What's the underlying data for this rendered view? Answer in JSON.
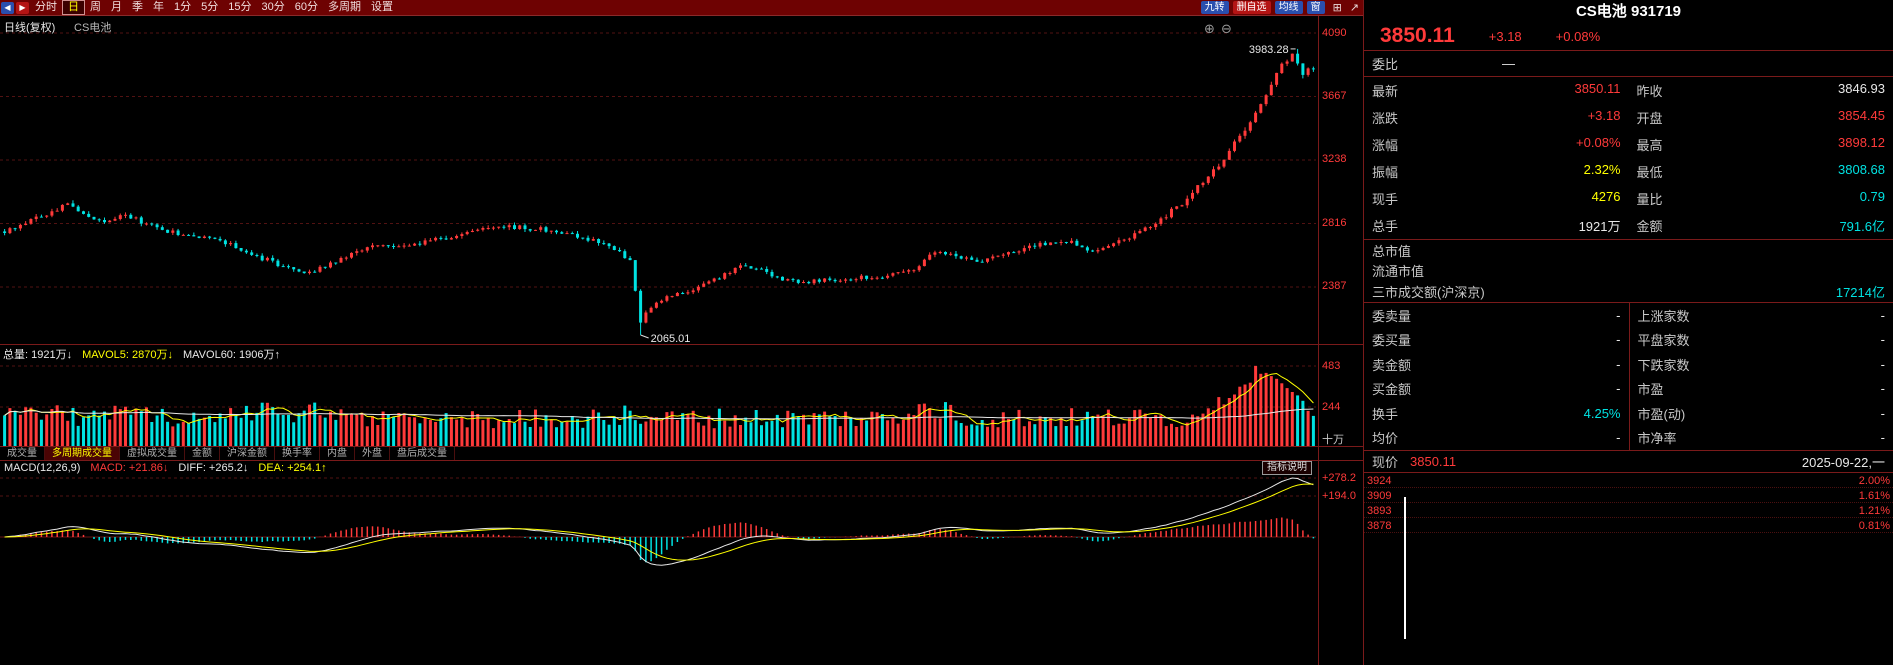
{
  "app": {
    "colors": {
      "red": "#ff3a3a",
      "cyan": "#00e2e2",
      "yellow": "#ffff00",
      "white": "#e8e8e8",
      "panel_border": "#7a1a1a",
      "toolbar_bg": "#6e0202",
      "grid": "#521212",
      "badge_blue": "#2a4fae",
      "badge_red": "#b41414"
    }
  },
  "toolbar": {
    "periods": [
      "分时",
      "日",
      "周",
      "月",
      "季",
      "年",
      "1分",
      "5分",
      "15分",
      "30分",
      "60分",
      "多周期",
      "设置"
    ],
    "active_period": "日",
    "badges": [
      {
        "label": "九转"
      },
      {
        "label": "删自选"
      },
      {
        "label": "均线"
      },
      {
        "label": "窗"
      }
    ]
  },
  "chart": {
    "type_label": "日线(复权)",
    "symbol_label": "CS电池",
    "axis_labels": [
      "4090",
      "3667",
      "3238",
      "2816",
      "2387"
    ],
    "high_annotation": "3983.28",
    "low_annotation": "2065.01"
  },
  "volume_panel": {
    "total": "总量: 1921万↓",
    "mavol5": "MAVOL5: 2870万↓",
    "mavol60": "MAVOL60: 1906万↑",
    "ticks": [
      "483",
      "244"
    ],
    "unit": "十万"
  },
  "tabs": {
    "items": [
      "成交量",
      "多周期成交量",
      "虚拟成交量",
      "金额",
      "沪深金额",
      "换手率",
      "内盘",
      "外盘",
      "盘后成交量"
    ],
    "active": "多周期成交量"
  },
  "macd_panel": {
    "title": "MACD(12,26,9)",
    "macd": "MACD: +21.86↓",
    "diff": "DIFF: +265.2↓",
    "dea": "DEA: +254.1↑",
    "ticks": [
      "+278.2",
      "+194.0"
    ],
    "help": "指标说明"
  },
  "sidebar": {
    "title": "CS电池 931719",
    "price": "3850.11",
    "change": "+3.18",
    "change_pct": "+0.08%",
    "weibi_label": "委比",
    "weibi_value": "—",
    "rows": [
      {
        "l1": "最新",
        "v1": "3850.11",
        "l2": "昨收",
        "v2": "3846.93"
      },
      {
        "l1": "涨跌",
        "v1": "+3.18",
        "l2": "开盘",
        "v2": "3854.45"
      },
      {
        "l1": "涨幅",
        "v1": "+0.08%",
        "l2": "最高",
        "v2": "3898.12"
      },
      {
        "l1": "振幅",
        "v1": "2.32%",
        "l2": "最低",
        "v2": "3808.68"
      },
      {
        "l1": "现手",
        "v1": "4276",
        "l2": "量比",
        "v2": "0.79"
      },
      {
        "l1": "总手",
        "v1": "1921万",
        "l2": "金额",
        "v2": "791.6亿"
      }
    ],
    "singles": [
      {
        "label": "总市值",
        "value": ""
      },
      {
        "label": "流通市值",
        "value": ""
      },
      {
        "label": "三市成交额(沪深京)",
        "value": "17214亿"
      }
    ],
    "pairs2": [
      {
        "l1": "委卖量",
        "v1": "-",
        "l2": "上涨家数",
        "v2": "-"
      },
      {
        "l1": "委买量",
        "v1": "-",
        "l2": "平盘家数",
        "v2": "-"
      },
      {
        "l1": "卖金额",
        "v1": "-",
        "l2": "下跌家数",
        "v2": "-"
      },
      {
        "l1": "买金额",
        "v1": "-",
        "l2": "市盈",
        "v2": "-"
      },
      {
        "l1": "换手",
        "v1": "4.25%",
        "l2": "市盈(动)",
        "v2": "-"
      },
      {
        "l1": "均价",
        "v1": "-",
        "l2": "市净率",
        "v2": "-"
      }
    ],
    "footer": {
      "label": "现价",
      "value": "3850.11",
      "date": "2025-09-22,一"
    },
    "mini": {
      "levels": [
        "3924",
        "3909",
        "3893",
        "3878"
      ],
      "pcts": [
        "2.00%",
        "1.61%",
        "1.21%",
        "0.81%"
      ]
    }
  },
  "chart_data": {
    "type": "candlestick",
    "symbol": "CS电池",
    "period": "日线(复权)",
    "count": 250,
    "last_close": 3850.11,
    "high": 3983.28,
    "low": 2065.01,
    "price_axis": {
      "ticks": [
        4090,
        3667,
        3238,
        2816,
        2387
      ]
    },
    "volume_axis": {
      "ticks": [
        483,
        244
      ],
      "unit": "十万"
    },
    "volume_last": 192,
    "keypoints": [
      [
        0,
        2760
      ],
      [
        3,
        2800
      ],
      [
        7,
        2860
      ],
      [
        12,
        2950
      ],
      [
        14,
        2900
      ],
      [
        18,
        2830
      ],
      [
        23,
        2870
      ],
      [
        28,
        2800
      ],
      [
        33,
        2740
      ],
      [
        38,
        2720
      ],
      [
        44,
        2660
      ],
      [
        49,
        2580
      ],
      [
        55,
        2500
      ],
      [
        58,
        2480
      ],
      [
        63,
        2560
      ],
      [
        68,
        2640
      ],
      [
        74,
        2670
      ],
      [
        80,
        2690
      ],
      [
        86,
        2730
      ],
      [
        92,
        2780
      ],
      [
        95,
        2800
      ],
      [
        100,
        2780
      ],
      [
        106,
        2760
      ],
      [
        112,
        2700
      ],
      [
        117,
        2630
      ],
      [
        119,
        2560
      ],
      [
        121,
        2150
      ],
      [
        123,
        2260
      ],
      [
        126,
        2330
      ],
      [
        131,
        2360
      ],
      [
        136,
        2450
      ],
      [
        140,
        2540
      ],
      [
        144,
        2500
      ],
      [
        148,
        2430
      ],
      [
        153,
        2420
      ],
      [
        158,
        2440
      ],
      [
        163,
        2450
      ],
      [
        168,
        2460
      ],
      [
        173,
        2500
      ],
      [
        177,
        2620
      ],
      [
        180,
        2600
      ],
      [
        184,
        2560
      ],
      [
        188,
        2580
      ],
      [
        192,
        2620
      ],
      [
        196,
        2660
      ],
      [
        200,
        2690
      ],
      [
        203,
        2700
      ],
      [
        206,
        2630
      ],
      [
        209,
        2660
      ],
      [
        212,
        2690
      ],
      [
        215,
        2740
      ],
      [
        218,
        2800
      ],
      [
        221,
        2870
      ],
      [
        224,
        2950
      ],
      [
        227,
        3060
      ],
      [
        230,
        3170
      ],
      [
        233,
        3300
      ],
      [
        236,
        3450
      ],
      [
        239,
        3600
      ],
      [
        241,
        3750
      ],
      [
        243,
        3880
      ],
      [
        245,
        3940
      ],
      [
        246,
        3870
      ],
      [
        247,
        3820
      ],
      [
        248,
        3870
      ],
      [
        249,
        3850.11
      ]
    ],
    "macd": {
      "params": "12,26,9",
      "last_macd": 21.86,
      "last_diff": 265.2,
      "last_dea": 254.1
    }
  }
}
